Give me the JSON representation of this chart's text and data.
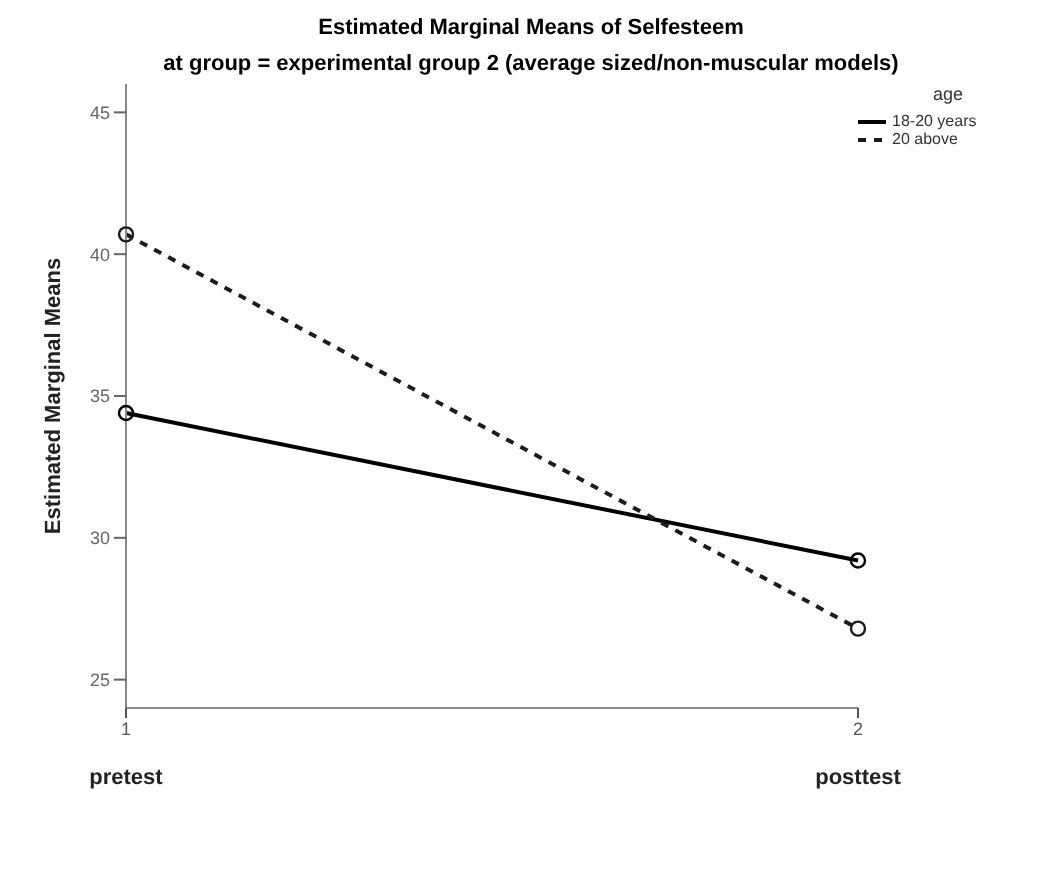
{
  "chart_data": {
    "type": "line",
    "title": "Estimated Marginal Means of Selfesteem",
    "subtitle": "at group = experimental group 2 (average sized/non-muscular models)",
    "ylabel": "Estimated Marginal Means",
    "legend_title": "age",
    "categories": [
      "1",
      "2"
    ],
    "series": [
      {
        "name": "18-20 years",
        "color": "#000000",
        "values": [
          34.4,
          29.2
        ],
        "line_style": "solid"
      },
      {
        "name": "20 above",
        "color": "#1c1c1c",
        "values": [
          40.7,
          26.8
        ],
        "line_style": "dashed"
      }
    ],
    "ylim": [
      24,
      46
    ],
    "yticks": [
      25,
      30,
      35,
      40,
      45
    ],
    "legend": "right",
    "marker": "circle",
    "annotations": [
      "pretest",
      "posttest"
    ]
  }
}
